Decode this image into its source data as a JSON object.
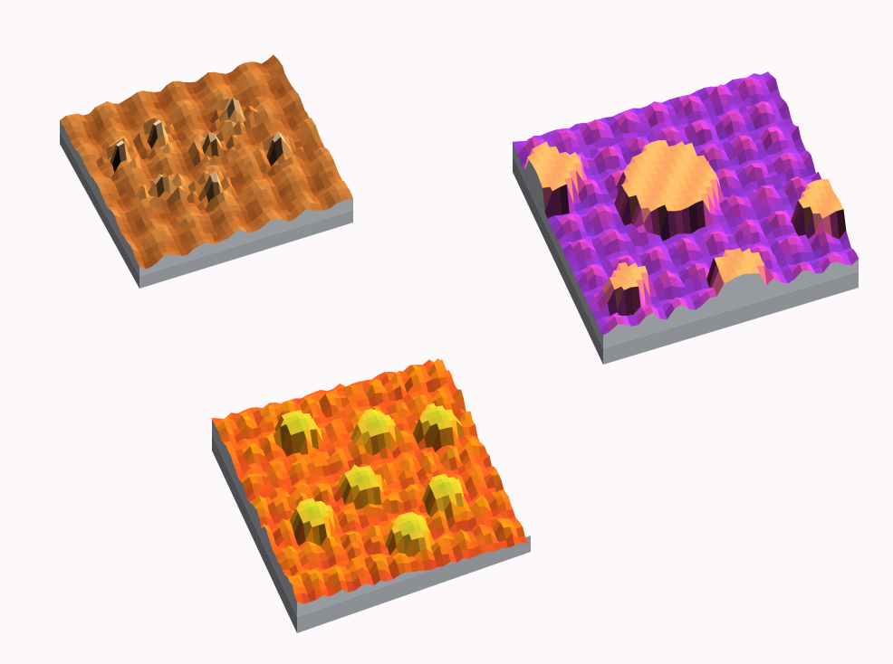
{
  "figure": {
    "background": "#fdf9fb",
    "panels": [
      {
        "id": "copper",
        "palette": [
          "#7a3a14",
          "#b25e24",
          "#d8893e",
          "#eeb57a",
          "#fbe6cc"
        ],
        "base_side": "#4a4c50",
        "base_front": "#8c8f93"
      },
      {
        "id": "magenta",
        "palette": [
          "#2a1bb0",
          "#6a3ad8",
          "#b63ad0",
          "#f04fb0",
          "#ffb060",
          "#fff08a"
        ],
        "base_side": "#4a4c50",
        "base_front": "#8c8f93"
      },
      {
        "id": "rainbow",
        "palette": [
          "#3a1a8a",
          "#d0207a",
          "#ff5a20",
          "#ff9a10",
          "#ffd030",
          "#6ad21a"
        ],
        "base_side": "#4a4c50",
        "base_front": "#8c8f93"
      }
    ]
  }
}
